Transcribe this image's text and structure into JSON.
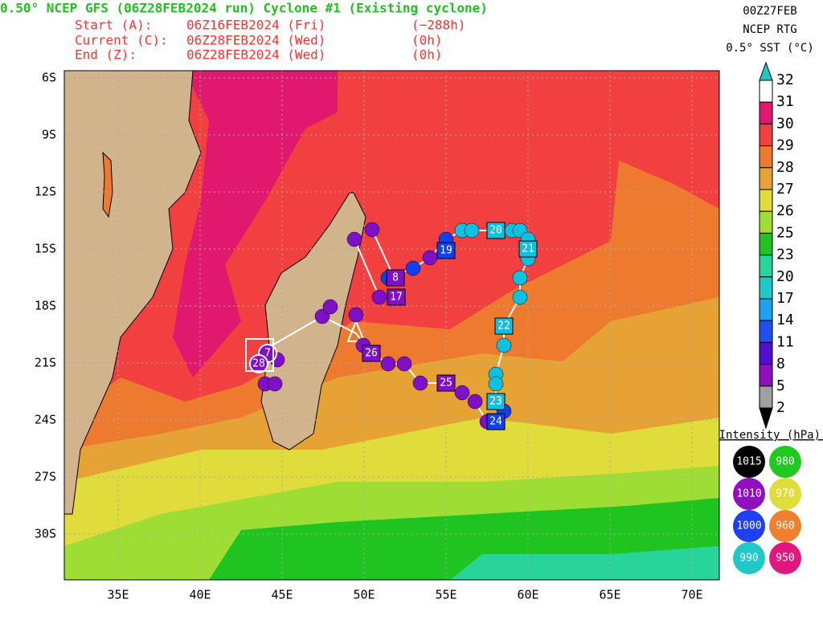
{
  "header": {
    "title": "0.50° NCEP GFS (06Z28FEB2024 run) Cyclone #1 (Existing cyclone)",
    "lines": [
      {
        "label": "Start (A):",
        "time": "06Z16FEB2024 (Fri)",
        "offset": "(−288h)"
      },
      {
        "label": "Current (C):",
        "time": "06Z28FEB2024 (Wed)",
        "offset": "(0h)"
      },
      {
        "label": "End (Z):",
        "time": "06Z28FEB2024 (Wed)",
        "offset": "(0h)"
      }
    ]
  },
  "info": [
    "00Z27FEB",
    "NCEP RTG",
    "0.5° SST (°C)"
  ],
  "map": {
    "lat_labels": [
      "6S",
      "9S",
      "12S",
      "15S",
      "18S",
      "21S",
      "24S",
      "27S",
      "30S"
    ],
    "lon_labels": [
      "35E",
      "40E",
      "45E",
      "50E",
      "55E",
      "60E",
      "65E",
      "70E"
    ]
  },
  "colorbar": {
    "labels": [
      "32",
      "31",
      "30",
      "29",
      "28",
      "27",
      "26",
      "25",
      "23",
      "20",
      "17",
      "14",
      "11",
      "8",
      "5",
      "2"
    ]
  },
  "intensity_legend": {
    "title": "Intensity (hPa):",
    "items": [
      "1015",
      "980",
      "1010",
      "970",
      "1000",
      "960",
      "990",
      "950"
    ]
  },
  "track": {
    "labels": [
      "7",
      "28",
      "8",
      "17",
      "19",
      "20",
      "21",
      "22",
      "26",
      "25",
      "23",
      "24"
    ]
  }
}
